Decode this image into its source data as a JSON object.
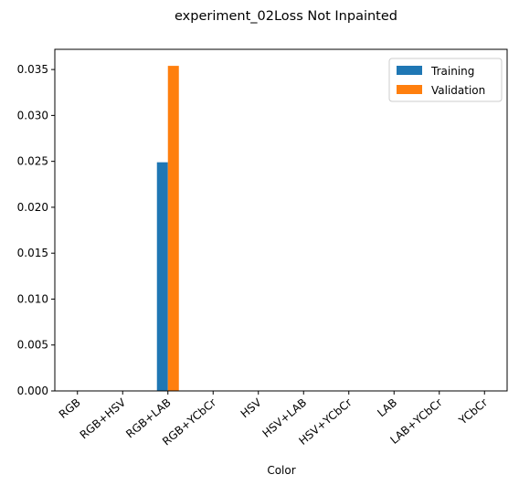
{
  "chart_data": {
    "type": "bar",
    "title": "experiment_02Loss Not Inpainted",
    "xlabel": "Color",
    "ylabel": "",
    "categories": [
      "RGB",
      "RGB+HSV",
      "RGB+LAB",
      "RGB+YCbCr",
      "HSV",
      "HSV+LAB",
      "HSV+YCbCr",
      "LAB",
      "LAB+YCbCr",
      "YCbCr"
    ],
    "series": [
      {
        "name": "Training",
        "color": "#1f77b4",
        "values": [
          0,
          0,
          0.0249,
          0,
          0,
          0,
          0,
          0,
          0,
          0
        ]
      },
      {
        "name": "Validation",
        "color": "#ff7f0e",
        "values": [
          0,
          0,
          0.0354,
          0,
          0,
          0,
          0,
          0,
          0,
          0
        ]
      }
    ],
    "ylim": [
      0,
      0.0372
    ],
    "yticks": [
      "0.000",
      "0.005",
      "0.010",
      "0.015",
      "0.020",
      "0.025",
      "0.030",
      "0.035"
    ],
    "grid": false,
    "legend_position": "top-right"
  }
}
